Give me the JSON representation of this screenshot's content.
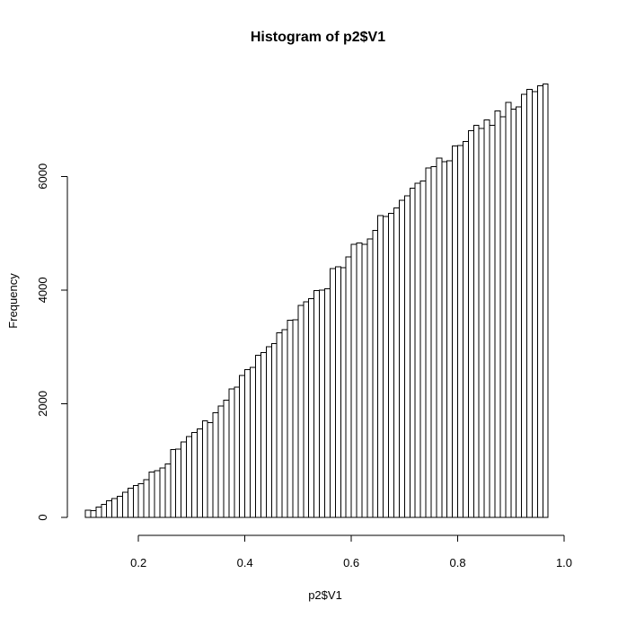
{
  "chart_data": {
    "type": "bar",
    "title": "Histogram of p2$V1",
    "xlabel": "p2$V1",
    "ylabel": "Frequency",
    "bin_start": 0.1,
    "bin_width": 0.01,
    "xlim": [
      0.1,
      1.0
    ],
    "ylim": [
      0,
      7600
    ],
    "x_ticks": [
      0.2,
      0.4,
      0.6,
      0.8,
      1.0
    ],
    "x_tick_labels": [
      "0.2",
      "0.4",
      "0.6",
      "0.8",
      "1.0"
    ],
    "y_ticks": [
      0,
      2000,
      4000,
      6000
    ],
    "y_tick_labels": [
      "0",
      "2000",
      "4000",
      "6000"
    ],
    "values": [
      130,
      120,
      180,
      230,
      290,
      330,
      370,
      440,
      510,
      560,
      590,
      660,
      800,
      820,
      870,
      940,
      1190,
      1200,
      1330,
      1420,
      1490,
      1560,
      1700,
      1670,
      1840,
      1960,
      2060,
      2260,
      2290,
      2500,
      2600,
      2640,
      2850,
      2900,
      3000,
      3060,
      3250,
      3300,
      3470,
      3480,
      3730,
      3790,
      3850,
      3990,
      4000,
      4020,
      4380,
      4410,
      4390,
      4580,
      4800,
      4830,
      4800,
      4900,
      5050,
      5310,
      5290,
      5350,
      5440,
      5580,
      5660,
      5790,
      5880,
      5920,
      6150,
      6170,
      6320,
      6260,
      6270,
      6530,
      6540,
      6610,
      6800,
      6900,
      6840,
      6990,
      6900,
      7150,
      7050,
      7300,
      7180,
      7220,
      7440,
      7530,
      7490,
      7590,
      7620
    ]
  }
}
